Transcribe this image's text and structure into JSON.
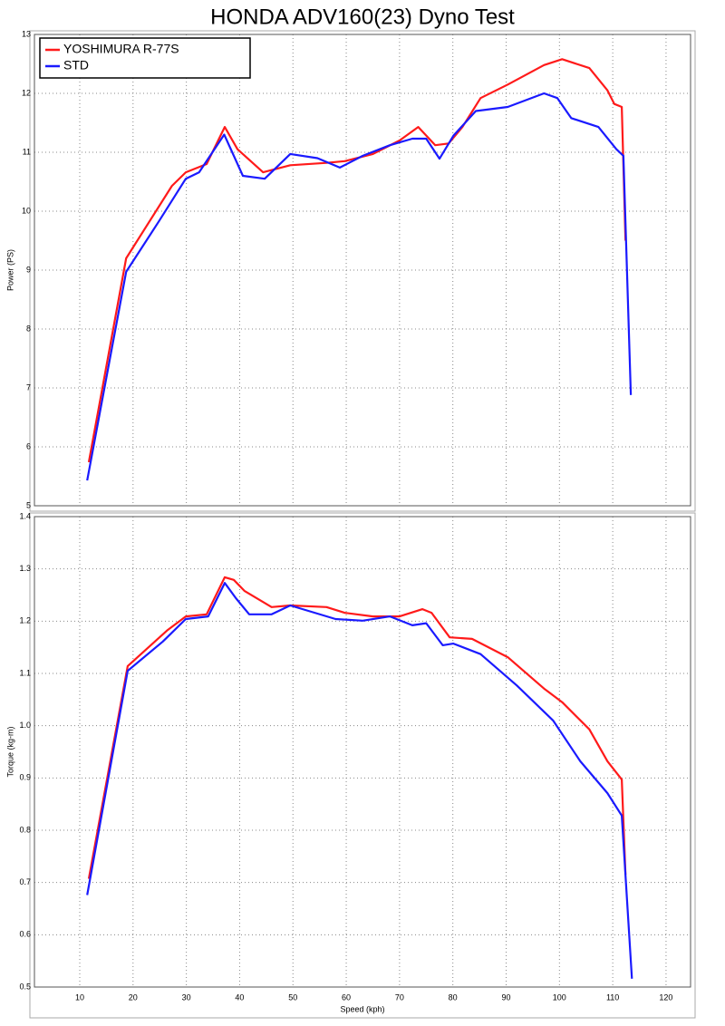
{
  "chart_data": [
    {
      "type": "line",
      "title": "HONDA ADV160(23) Dyno Test",
      "ylabel": "Power (PS)",
      "xlim": [
        1.5,
        124.6
      ],
      "ylim": [
        5,
        13
      ],
      "yticks": [
        5,
        6,
        7,
        8,
        9,
        10,
        11,
        12,
        13
      ],
      "grid": true,
      "legend": "upper-left",
      "series": [
        {
          "name": "YOSHIMURA R-77S",
          "color": "#ff1a1a",
          "x": [
            11.7,
            18.7,
            27.3,
            29.9,
            33.8,
            37.2,
            39.6,
            44.4,
            49.5,
            56.3,
            59.7,
            65,
            70,
            73.5,
            76.7,
            79.2,
            81.8,
            85.2,
            90.3,
            97.1,
            100.5,
            105.6,
            109,
            110.3,
            111.7,
            112.4
          ],
          "values": [
            5.74,
            9.2,
            10.43,
            10.66,
            10.8,
            11.43,
            11.05,
            10.66,
            10.78,
            10.82,
            10.85,
            10.97,
            11.2,
            11.43,
            11.12,
            11.15,
            11.43,
            11.92,
            12.15,
            12.48,
            12.58,
            12.43,
            12.05,
            11.82,
            11.77,
            9.5
          ]
        },
        {
          "name": "STD",
          "color": "#1a1aff",
          "x": [
            11.4,
            18.7,
            24.8,
            29.9,
            32.4,
            37.1,
            40.6,
            44.7,
            49.5,
            54.6,
            58.8,
            63.1,
            68.2,
            72.4,
            75,
            77.5,
            80.1,
            84.3,
            90.3,
            97.1,
            99.6,
            102.2,
            107.3,
            110.7,
            112,
            113.4
          ],
          "values": [
            5.43,
            8.97,
            9.82,
            10.55,
            10.66,
            11.3,
            10.6,
            10.55,
            10.97,
            10.9,
            10.74,
            10.94,
            11.12,
            11.23,
            11.23,
            10.89,
            11.28,
            11.7,
            11.77,
            12.0,
            11.92,
            11.58,
            11.43,
            11.05,
            10.94,
            6.88
          ]
        }
      ]
    },
    {
      "type": "line",
      "ylabel": "Torque (kg-m)",
      "xlabel": "Speed (kph)",
      "xlim": [
        1.5,
        124.6
      ],
      "xticks": [
        10,
        20,
        30,
        40,
        50,
        60,
        70,
        80,
        90,
        100,
        110,
        120
      ],
      "ylim": [
        0.5,
        1.4
      ],
      "yticks": [
        0.5,
        0.6,
        0.7,
        0.8,
        0.9,
        {
          "value": 1,
          "label": "1.0"
        },
        1.1,
        1.2,
        1.3,
        1.4
      ],
      "grid": true,
      "series": [
        {
          "name": "YOSHIMURA R-77S",
          "color": "#ff1a1a",
          "x": [
            11.7,
            19,
            26.5,
            29.9,
            33.8,
            37.2,
            38.9,
            40.9,
            46,
            49.5,
            56.3,
            59.7,
            65,
            70,
            74.3,
            76,
            79.4,
            83.6,
            90.3,
            97.1,
            100.5,
            105.6,
            109,
            111.7,
            112.4
          ],
          "values": [
            0.707,
            1.114,
            1.183,
            1.209,
            1.213,
            1.284,
            1.279,
            1.258,
            1.227,
            1.23,
            1.227,
            1.216,
            1.209,
            1.209,
            1.223,
            1.216,
            1.169,
            1.166,
            1.131,
            1.071,
            1.045,
            0.993,
            0.932,
            0.897,
            0.715
          ]
        },
        {
          "name": "STD",
          "color": "#1a1aff",
          "x": [
            11.4,
            19,
            25.6,
            29.9,
            34.1,
            37.2,
            39.3,
            41.8,
            46,
            49.5,
            58,
            63.1,
            68.2,
            72.4,
            75,
            78.1,
            80.1,
            85.2,
            92,
            98.8,
            103.9,
            109,
            111.7,
            113.6
          ],
          "values": [
            0.676,
            1.105,
            1.161,
            1.204,
            1.209,
            1.273,
            1.244,
            1.213,
            1.213,
            1.23,
            1.204,
            1.201,
            1.209,
            1.192,
            1.196,
            1.154,
            1.157,
            1.137,
            1.077,
            1.01,
            0.932,
            0.871,
            0.828,
            0.516
          ]
        }
      ]
    }
  ]
}
